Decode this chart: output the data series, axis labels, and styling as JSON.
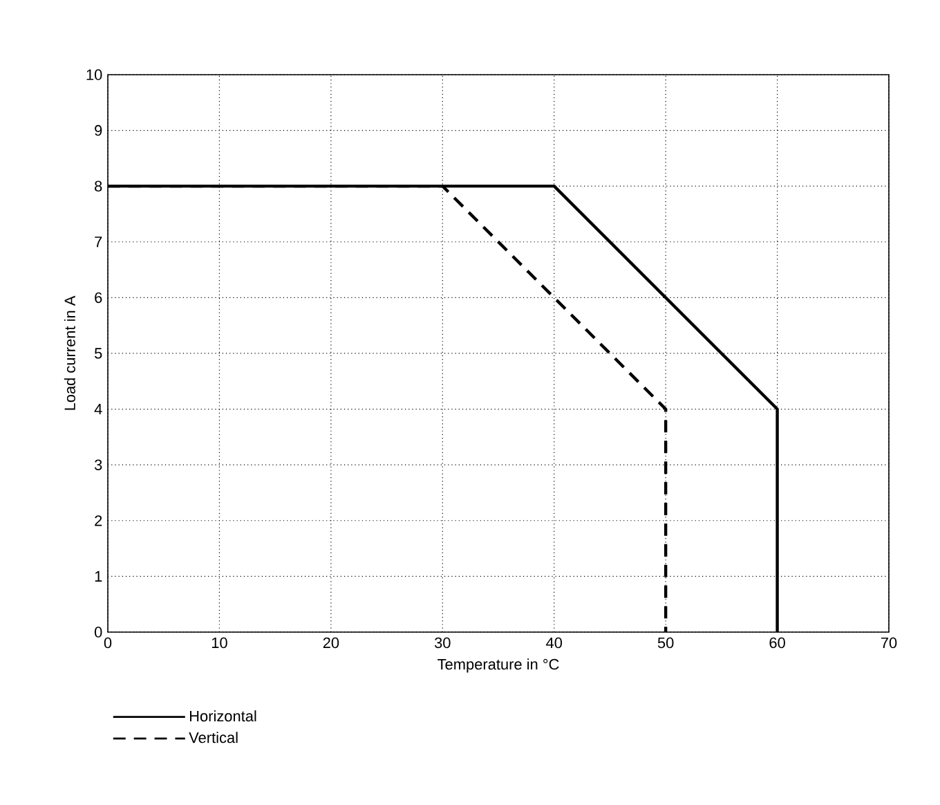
{
  "chart_data": {
    "type": "line",
    "xlabel": "Temperature in °C",
    "ylabel": "Load current in A",
    "series": [
      {
        "name": "Horizontal",
        "color": "#000000",
        "line_style": "solid",
        "x": [
          0,
          40,
          50,
          60,
          60
        ],
        "values": [
          8,
          8,
          6,
          4,
          0
        ]
      },
      {
        "name": "Vertical",
        "color": "#000000",
        "line_style": "dashed",
        "x": [
          0,
          30,
          40,
          50,
          50
        ],
        "values": [
          8,
          8,
          6,
          4,
          0
        ]
      }
    ],
    "xlim": [
      0,
      70
    ],
    "ylim": [
      0,
      10
    ],
    "xticks": [
      0,
      10,
      20,
      30,
      40,
      50,
      60,
      70
    ],
    "yticks": [
      0,
      1,
      2,
      3,
      4,
      5,
      6,
      7,
      8,
      9,
      10
    ],
    "grid": true,
    "legend": "bottom left",
    "marker": "none"
  }
}
